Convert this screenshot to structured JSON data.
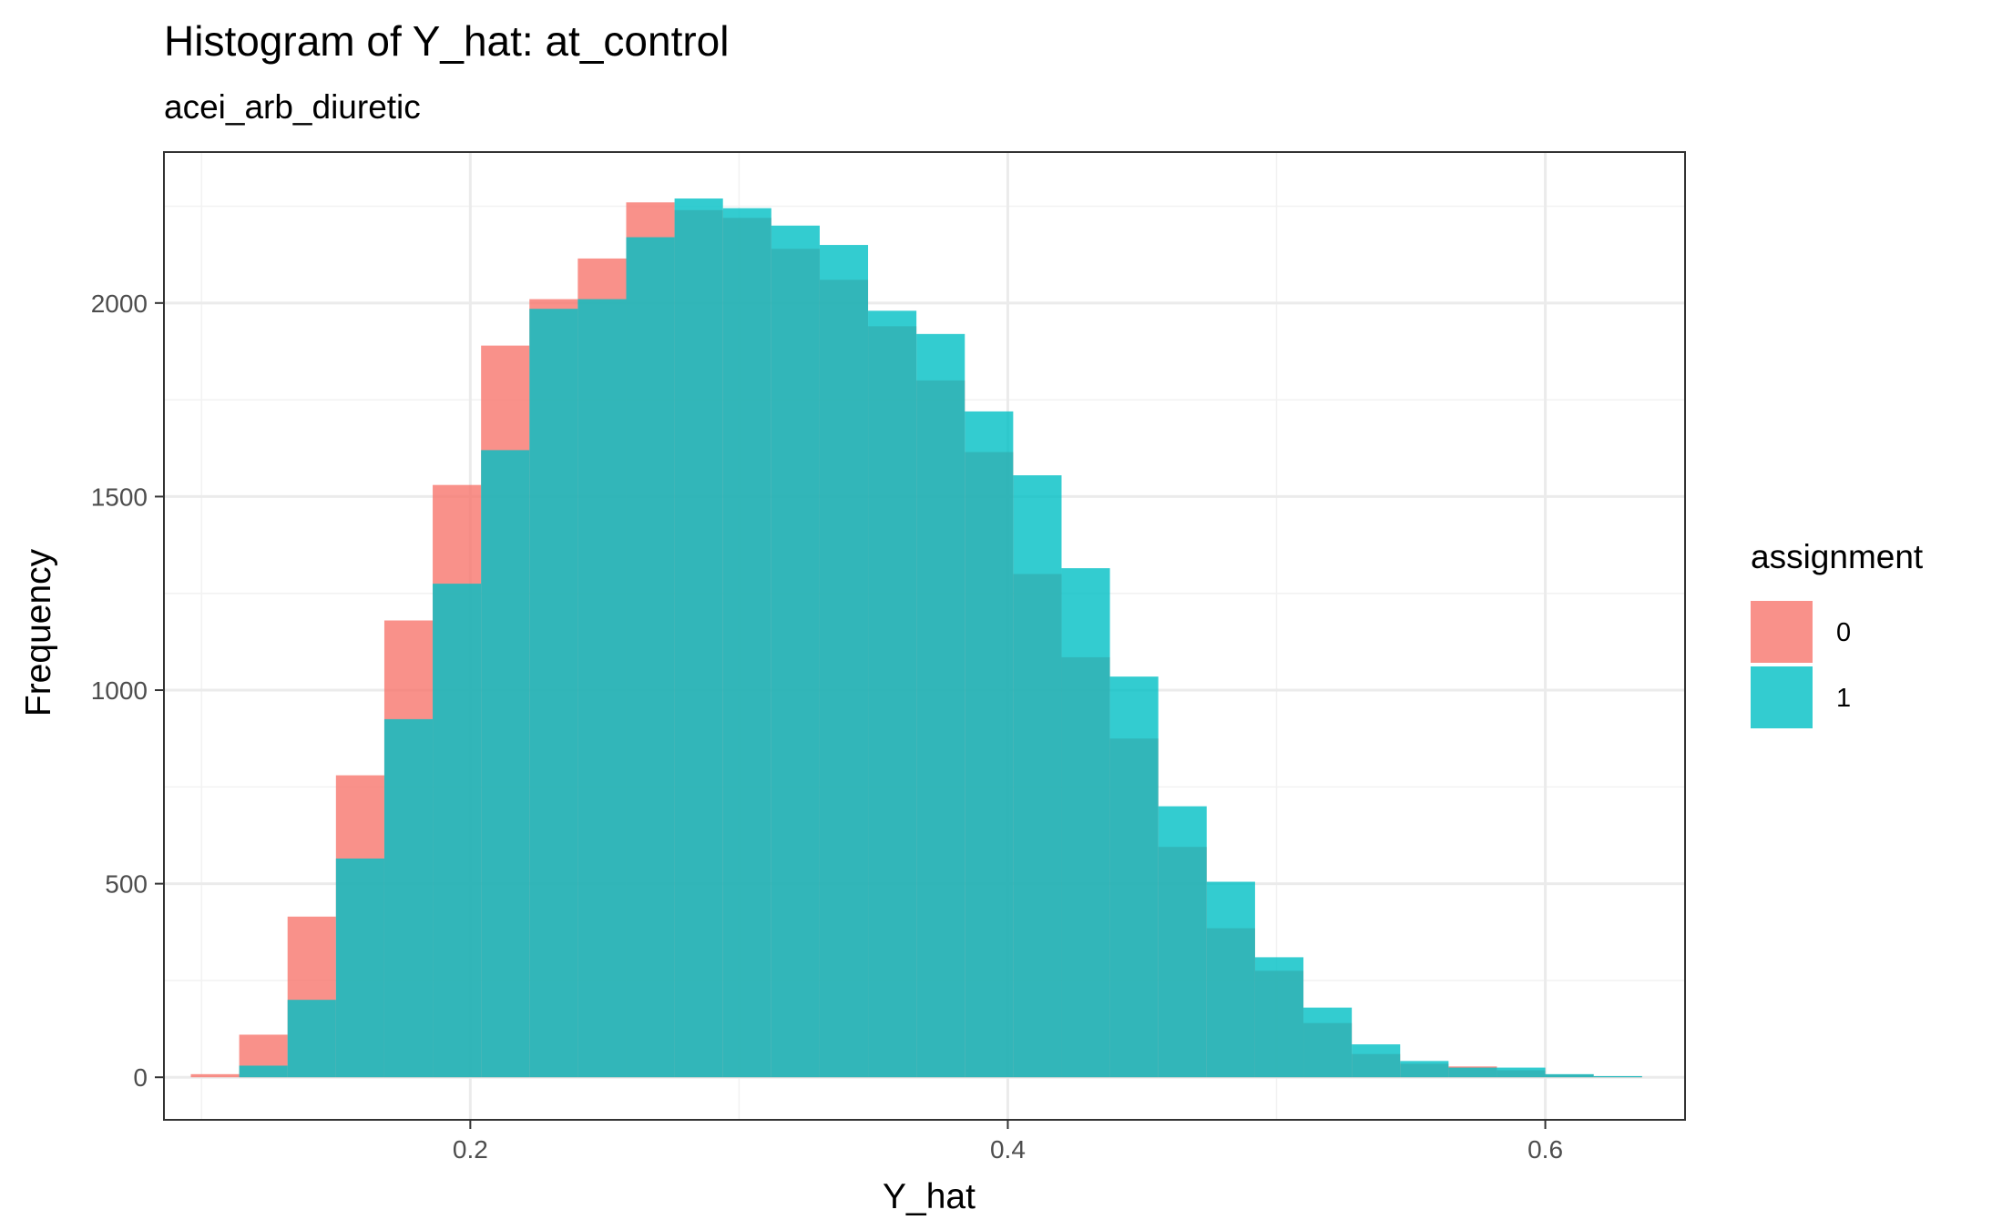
{
  "chart_data": {
    "type": "histogram",
    "title": "Histogram of Y_hat: at_control",
    "subtitle": "acei_arb_diuretic",
    "xlabel": "Y_hat",
    "ylabel": "Frequency",
    "xlim": [
      0.086,
      0.652
    ],
    "ylim": [
      -110,
      2390
    ],
    "x_ticks": [
      0.2,
      0.4,
      0.6
    ],
    "x_tick_labels": [
      "0.2",
      "0.4",
      "0.6"
    ],
    "y_ticks": [
      0,
      500,
      1000,
      1500,
      2000
    ],
    "y_tick_labels": [
      "0",
      "500",
      "1000",
      "1500",
      "2000"
    ],
    "x_minor_ticks": [
      0.1,
      0.3,
      0.5
    ],
    "y_minor_ticks": [
      250,
      750,
      1250,
      1750,
      2250
    ],
    "grid": true,
    "legend_position": "right",
    "legend_title": "assignment",
    "bin_edges": [
      0.096,
      0.114,
      0.132,
      0.15,
      0.168,
      0.186,
      0.204,
      0.222,
      0.24,
      0.258,
      0.276,
      0.294,
      0.312,
      0.33,
      0.348,
      0.366,
      0.384,
      0.402,
      0.42,
      0.438,
      0.456,
      0.474,
      0.492,
      0.51,
      0.528,
      0.546,
      0.564,
      0.582,
      0.6,
      0.618,
      0.636
    ],
    "series": [
      {
        "name": "0",
        "color": "#F8766D",
        "values": [
          8,
          110,
          415,
          780,
          1180,
          1530,
          1890,
          2010,
          2115,
          2260,
          2240,
          2220,
          2140,
          2060,
          1940,
          1800,
          1615,
          1300,
          1085,
          875,
          595,
          385,
          275,
          140,
          60,
          35,
          28,
          18,
          7,
          2
        ]
      },
      {
        "name": "1",
        "color": "#00BFC4",
        "values": [
          0,
          30,
          200,
          565,
          925,
          1275,
          1620,
          1985,
          2010,
          2170,
          2270,
          2245,
          2200,
          2150,
          1980,
          1920,
          1720,
          1555,
          1315,
          1035,
          700,
          505,
          310,
          180,
          85,
          42,
          25,
          25,
          8,
          3
        ]
      }
    ]
  }
}
